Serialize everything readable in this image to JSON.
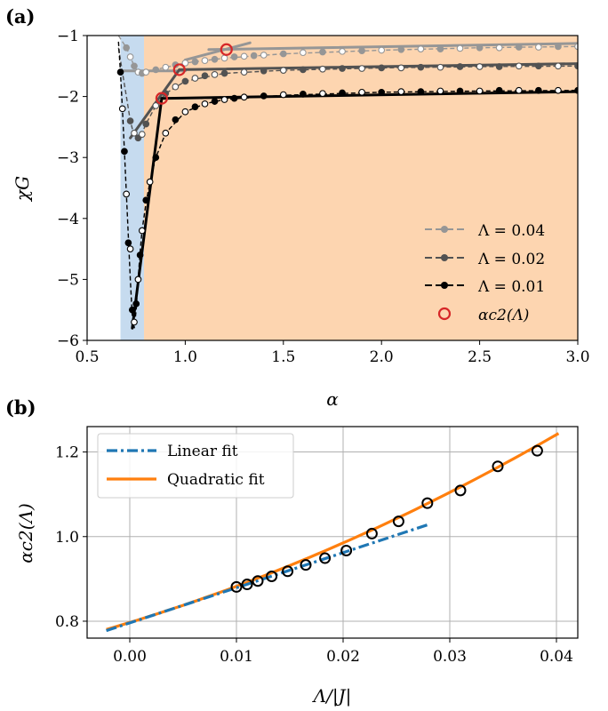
{
  "chart_data": [
    {
      "panel_label": "(a)",
      "type": "line",
      "xlabel": "α",
      "ylabel": "χG",
      "xlim": [
        0.5,
        3.0
      ],
      "ylim": [
        -6,
        -1
      ],
      "xticks": [
        0.5,
        1.0,
        1.5,
        2.0,
        2.5,
        3.0
      ],
      "xtick_labels": [
        "0.5",
        "1.0",
        "1.5",
        "2.0",
        "2.5",
        "3.0"
      ],
      "yticks": [
        -1,
        -2,
        -3,
        -4,
        -5,
        -6
      ],
      "ytick_labels": [
        "−1",
        "−2",
        "−3",
        "−4",
        "−5",
        "−6"
      ],
      "regions": [
        {
          "name": "blue-region",
          "x_range": [
            0.67,
            0.79
          ],
          "color": "#c6dbef"
        },
        {
          "name": "orange-region",
          "x_range": [
            0.79,
            3.0
          ],
          "color": "#fdd5b0"
        }
      ],
      "series": [
        {
          "name": "Λ = 0.04",
          "color": "#969696",
          "curve_x": [
            0.66,
            0.68,
            0.7,
            0.72,
            0.74,
            0.76,
            0.78,
            0.8,
            0.85,
            0.9,
            1.0,
            1.2,
            1.5,
            2.0,
            2.5,
            3.0
          ],
          "curve_y": [
            -1.0,
            -1.1,
            -1.2,
            -1.35,
            -1.5,
            -1.6,
            -1.62,
            -1.6,
            -1.56,
            -1.52,
            -1.45,
            -1.37,
            -1.3,
            -1.24,
            -1.2,
            -1.18
          ],
          "dots_x": [
            0.7,
            0.72,
            0.74,
            0.76,
            0.78,
            0.8,
            0.85,
            0.9,
            0.95,
            1.0,
            1.05,
            1.1,
            1.15,
            1.2,
            1.25,
            1.3,
            1.35,
            1.4,
            1.5,
            1.6,
            1.7,
            1.8,
            1.9,
            2.0,
            2.1,
            2.2,
            2.3,
            2.4,
            2.5,
            2.6,
            2.7,
            2.8,
            2.9,
            3.0
          ],
          "dots_y": [
            -1.2,
            -1.35,
            -1.5,
            -1.6,
            -1.62,
            -1.6,
            -1.56,
            -1.52,
            -1.48,
            -1.45,
            -1.43,
            -1.41,
            -1.39,
            -1.37,
            -1.35,
            -1.34,
            -1.33,
            -1.32,
            -1.3,
            -1.28,
            -1.27,
            -1.26,
            -1.25,
            -1.24,
            -1.23,
            -1.22,
            -1.22,
            -1.21,
            -1.2,
            -1.2,
            -1.19,
            -1.19,
            -1.18,
            -1.18
          ],
          "fit_lines": [
            {
              "x": [
                0.68,
                1.0
              ],
              "y": [
                -1.58,
                -1.58
              ]
            },
            {
              "x": [
                1.0,
                1.33
              ],
              "y": [
                -1.4,
                -1.12
              ]
            },
            {
              "x": [
                1.12,
                3.0
              ],
              "y": [
                -1.23,
                -1.13
              ]
            }
          ]
        },
        {
          "name": "Λ = 0.02",
          "color": "#525252",
          "curve_x": [
            0.66,
            0.68,
            0.7,
            0.72,
            0.74,
            0.76,
            0.78,
            0.8,
            0.85,
            0.9,
            1.0,
            1.2,
            1.5,
            2.0,
            2.5,
            3.0
          ],
          "curve_y": [
            -1.2,
            -1.6,
            -2.0,
            -2.4,
            -2.65,
            -2.7,
            -2.6,
            -2.45,
            -2.15,
            -1.95,
            -1.75,
            -1.62,
            -1.57,
            -1.53,
            -1.51,
            -1.5
          ],
          "dots_x": [
            0.72,
            0.74,
            0.76,
            0.78,
            0.8,
            0.85,
            0.9,
            0.95,
            1.0,
            1.05,
            1.1,
            1.15,
            1.2,
            1.3,
            1.4,
            1.5,
            1.6,
            1.7,
            1.8,
            1.9,
            2.0,
            2.1,
            2.2,
            2.3,
            2.4,
            2.5,
            2.6,
            2.7,
            2.8,
            2.9,
            3.0
          ],
          "dots_y": [
            -2.4,
            -2.6,
            -2.68,
            -2.62,
            -2.45,
            -2.15,
            -1.95,
            -1.84,
            -1.75,
            -1.7,
            -1.66,
            -1.64,
            -1.62,
            -1.6,
            -1.58,
            -1.57,
            -1.56,
            -1.55,
            -1.54,
            -1.54,
            -1.53,
            -1.53,
            -1.52,
            -1.52,
            -1.51,
            -1.51,
            -1.51,
            -1.5,
            -1.5,
            -1.5,
            -1.5
          ],
          "fit_lines": [
            {
              "x": [
                0.72,
                0.97
              ],
              "y": [
                -2.68,
                -1.56
              ]
            },
            {
              "x": [
                0.97,
                3.0
              ],
              "y": [
                -1.56,
                -1.46
              ]
            }
          ]
        },
        {
          "name": "Λ = 0.01",
          "color": "#000000",
          "curve_x": [
            0.66,
            0.67,
            0.68,
            0.69,
            0.7,
            0.71,
            0.72,
            0.73,
            0.74,
            0.75,
            0.76,
            0.77,
            0.78,
            0.8,
            0.82,
            0.85,
            0.9,
            1.0,
            1.1,
            1.2,
            1.5,
            2.0,
            2.5,
            3.0
          ],
          "curve_y": [
            -1.1,
            -1.6,
            -2.2,
            -2.9,
            -3.6,
            -4.3,
            -5.0,
            -5.6,
            -5.8,
            -5.5,
            -5.0,
            -4.55,
            -4.2,
            -3.75,
            -3.4,
            -3.0,
            -2.6,
            -2.25,
            -2.12,
            -2.05,
            -1.98,
            -1.93,
            -1.91,
            -1.9
          ],
          "dots_x": [
            0.67,
            0.68,
            0.69,
            0.7,
            0.71,
            0.72,
            0.73,
            0.74,
            0.75,
            0.76,
            0.77,
            0.78,
            0.8,
            0.82,
            0.85,
            0.9,
            0.95,
            1.0,
            1.05,
            1.1,
            1.15,
            1.2,
            1.25,
            1.3,
            1.4,
            1.5,
            1.6,
            1.7,
            1.8,
            1.9,
            2.0,
            2.1,
            2.2,
            2.3,
            2.4,
            2.5,
            2.6,
            2.7,
            2.8,
            2.9,
            3.0
          ],
          "dots_y": [
            -1.6,
            -2.2,
            -2.9,
            -3.6,
            -4.4,
            -4.5,
            -5.5,
            -5.7,
            -5.4,
            -5.0,
            -4.6,
            -4.2,
            -3.7,
            -3.4,
            -3.0,
            -2.6,
            -2.38,
            -2.25,
            -2.17,
            -2.12,
            -2.08,
            -2.05,
            -2.03,
            -2.01,
            -1.99,
            -1.97,
            -1.96,
            -1.95,
            -1.94,
            -1.93,
            -1.93,
            -1.92,
            -1.92,
            -1.91,
            -1.91,
            -1.91,
            -1.9,
            -1.9,
            -1.9,
            -1.9,
            -1.9
          ],
          "fit_lines": [
            {
              "x": [
                0.73,
                0.88
              ],
              "y": [
                -5.8,
                -2.03
              ]
            },
            {
              "x": [
                0.88,
                3.0
              ],
              "y": [
                -2.03,
                -1.92
              ]
            }
          ]
        }
      ],
      "markers": {
        "name": "α_c2(Λ)",
        "color": "#d62728",
        "x": [
          0.88,
          0.97,
          1.21
        ],
        "y": [
          -2.03,
          -1.56,
          -1.23
        ]
      },
      "legend": {
        "position": "lower-right",
        "entries": [
          "Λ = 0.04",
          "Λ = 0.02",
          "Λ = 0.01",
          "αc2(Λ)"
        ]
      }
    },
    {
      "panel_label": "(b)",
      "type": "scatter",
      "xlabel": "Λ/|J|",
      "ylabel": "αc2(Λ)",
      "xlim": [
        -0.004,
        0.042
      ],
      "ylim": [
        0.76,
        1.26
      ],
      "xticks": [
        0.0,
        0.01,
        0.02,
        0.03,
        0.04
      ],
      "xtick_labels": [
        "0.00",
        "0.01",
        "0.02",
        "0.03",
        "0.04"
      ],
      "yticks": [
        0.8,
        1.0,
        1.2
      ],
      "ytick_labels": [
        "0.8",
        "1.0",
        "1.2"
      ],
      "grid": true,
      "points": {
        "x": [
          0.01,
          0.011,
          0.012,
          0.0133,
          0.0148,
          0.0165,
          0.0183,
          0.0203,
          0.0227,
          0.0252,
          0.0279,
          0.031,
          0.0345,
          0.0382
        ],
        "y": [
          0.881,
          0.887,
          0.895,
          0.906,
          0.918,
          0.933,
          0.949,
          0.967,
          1.007,
          1.036,
          1.079,
          1.109,
          1.166,
          1.203
        ]
      },
      "linear_fit": {
        "name": "Linear fit",
        "color": "#1f77b4",
        "intercept": 0.796,
        "slope": 8.3,
        "x_range": [
          -0.0022,
          0.028
        ]
      },
      "quadratic_fit": {
        "name": "Quadratic fit",
        "color": "#ff7f0e",
        "a": 0.797,
        "b": 7.7,
        "c": 85.0,
        "x_range": [
          -0.0022,
          0.0402
        ]
      },
      "legend": {
        "position": "top-left",
        "entries": [
          "Linear fit",
          "Quadratic fit"
        ]
      }
    }
  ]
}
